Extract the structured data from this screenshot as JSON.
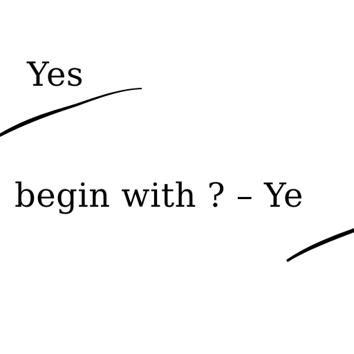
{
  "fragment": {
    "top_word": "Yes",
    "line_text": "begin with  ? – Ye"
  },
  "ink": {
    "text_color": "#000000",
    "background_color": "#ffffff"
  }
}
